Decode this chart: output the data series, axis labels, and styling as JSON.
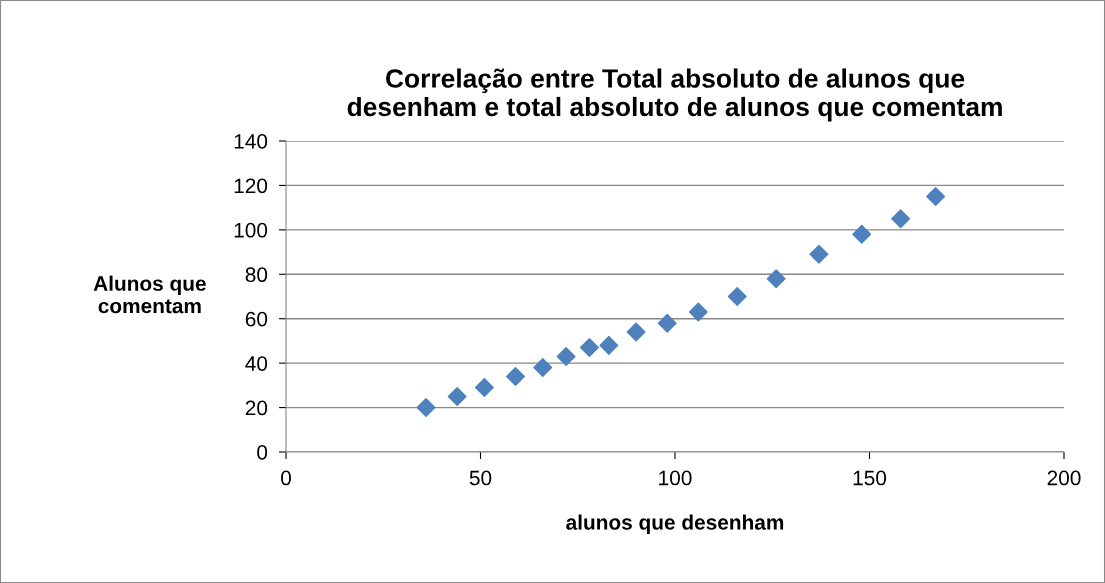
{
  "chart_data": {
    "type": "scatter",
    "title": "Correlação entre Total absoluto de alunos que\ndesenham e total absoluto de alunos que comentam",
    "xlabel": "alunos que desenham",
    "ylabel": "Alunos que\ncomentam",
    "x": [
      36,
      44,
      51,
      59,
      66,
      72,
      78,
      83,
      90,
      98,
      106,
      116,
      126,
      137,
      148,
      158,
      167
    ],
    "series": [
      {
        "color": "#4f81bd",
        "values": [
          20,
          25,
          29,
          34,
          38,
          43,
          47,
          48,
          54,
          58,
          63,
          70,
          78,
          89,
          98,
          105,
          115
        ]
      }
    ],
    "xlim": [
      0,
      200
    ],
    "xticks": [
      0,
      50,
      100,
      150,
      200
    ],
    "ylim": [
      0,
      140
    ],
    "yticks": [
      0,
      20,
      40,
      60,
      80,
      100,
      120,
      140
    ],
    "grid": "y",
    "marker": "diamond",
    "legend": false
  }
}
